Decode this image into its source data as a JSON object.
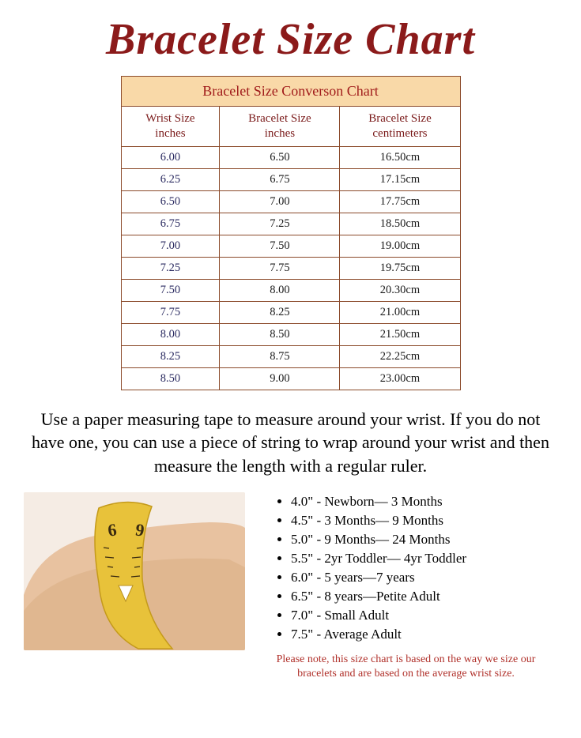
{
  "title": "Bracelet Size Chart",
  "table": {
    "caption": "Bracelet Size Converson Chart",
    "columns": [
      "Wrist Size\ninches",
      "Bracelet Size\ninches",
      "Bracelet Size\ncentimeters"
    ],
    "rows": [
      [
        "6.00",
        "6.50",
        "16.50cm"
      ],
      [
        "6.25",
        "6.75",
        "17.15cm"
      ],
      [
        "6.50",
        "7.00",
        "17.75cm"
      ],
      [
        "6.75",
        "7.25",
        "18.50cm"
      ],
      [
        "7.00",
        "7.50",
        "19.00cm"
      ],
      [
        "7.25",
        "7.75",
        "19.75cm"
      ],
      [
        "7.50",
        "8.00",
        "20.30cm"
      ],
      [
        "7.75",
        "8.25",
        "21.00cm"
      ],
      [
        "8.00",
        "8.50",
        "21.50cm"
      ],
      [
        "8.25",
        "8.75",
        "22.25cm"
      ],
      [
        "8.50",
        "9.00",
        "23.00cm"
      ]
    ],
    "border_color": "#8b4a2a",
    "caption_bg": "#f9d9a8",
    "caption_color": "#a01a1a",
    "head_color": "#7a1a1a",
    "first_col_color": "#2a2a60"
  },
  "instructions": "Use a paper measuring tape to measure around your wrist. If you do not have one, you can use a piece of string to wrap around your wrist and then measure the length with a regular ruler.",
  "age_guide": [
    "4.0\" - Newborn— 3 Months",
    "4.5\" - 3 Months— 9 Months",
    "5.0\" - 9 Months— 24 Months",
    "5.5\" - 2yr Toddler— 4yr Toddler",
    "6.0\" - 5 years—7 years",
    "6.5\" - 8 years—Petite Adult",
    "7.0\" - Small Adult",
    "7.5\" - Average Adult"
  ],
  "footnote": "Please note, this size chart is based on the way we size our bracelets and are based on the average wrist size.",
  "illustration": {
    "skin_color": "#e8c2a0",
    "skin_shadow": "#d4a67e",
    "tape_color": "#e8c23a",
    "tape_edge": "#c49a1a",
    "bg": "#f5ece4"
  },
  "colors": {
    "title": "#8b1a1a",
    "footnote": "#b0302a",
    "page_bg": "#ffffff"
  }
}
